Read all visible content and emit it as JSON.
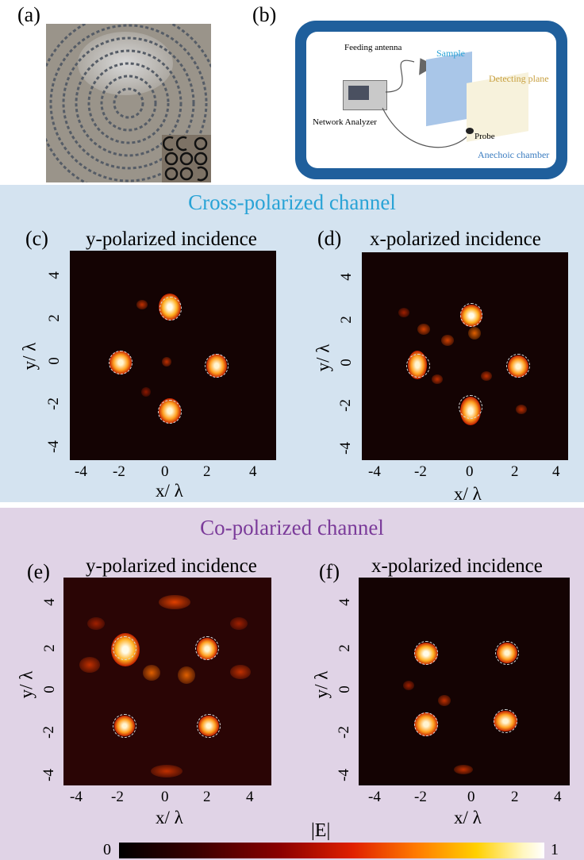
{
  "panels": {
    "a": {
      "label": "(a)"
    },
    "b": {
      "label": "(b)",
      "feeding_antenna": "Feeding antenna",
      "sample": "Sample",
      "detecting_plane": "Detecting plane",
      "network_analyzer": "Network Analyzer",
      "probe": "Probe",
      "anechoic_chamber": "Anechoic chamber"
    },
    "c": {
      "label": "(c)",
      "title": "y-polarized incidence"
    },
    "d": {
      "label": "(d)",
      "title": "x-polarized incidence"
    },
    "e": {
      "label": "(e)",
      "title": "y-polarized incidence"
    },
    "f": {
      "label": "(f)",
      "title": "x-polarized incidence"
    }
  },
  "sections": {
    "cross": {
      "title": "Cross-polarized channel",
      "color": "#29a3d6"
    },
    "co": {
      "title": "Co-polarized channel",
      "color": "#7b3b9a"
    }
  },
  "axes": {
    "xlabel": "x/ λ",
    "ylabel": "y/ λ",
    "xticks": [
      "-4",
      "-2",
      "0",
      "2",
      "4"
    ],
    "yticks": [
      "4",
      "2",
      "0",
      "-2",
      "-4"
    ]
  },
  "colorbar": {
    "label": "|E|",
    "min": "0",
    "max": "1"
  }
}
